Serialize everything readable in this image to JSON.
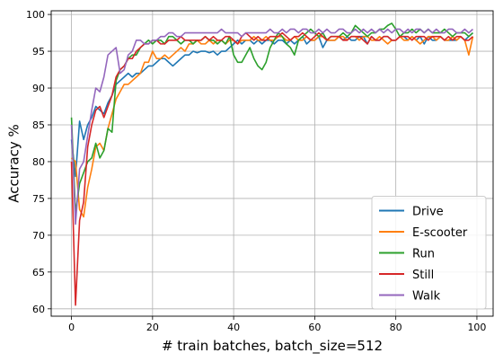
{
  "chart_data": {
    "type": "line",
    "title": "",
    "xlabel": "# train batches, batch_size=512",
    "ylabel": "Accuracy %",
    "xlim": [
      -5,
      104
    ],
    "ylim": [
      59,
      100.5
    ],
    "xticks": [
      0,
      20,
      40,
      60,
      80,
      100
    ],
    "yticks": [
      60,
      65,
      70,
      75,
      80,
      85,
      90,
      95,
      100
    ],
    "grid": true,
    "legend_position": "bottom-right",
    "x": [
      0,
      1,
      2,
      3,
      4,
      5,
      6,
      7,
      8,
      9,
      10,
      11,
      12,
      13,
      14,
      15,
      16,
      17,
      18,
      19,
      20,
      21,
      22,
      23,
      24,
      25,
      26,
      27,
      28,
      29,
      30,
      31,
      32,
      33,
      34,
      35,
      36,
      37,
      38,
      39,
      40,
      41,
      42,
      43,
      44,
      45,
      46,
      47,
      48,
      49,
      50,
      51,
      52,
      53,
      54,
      55,
      56,
      57,
      58,
      59,
      60,
      61,
      62,
      63,
      64,
      65,
      66,
      67,
      68,
      69,
      70,
      71,
      72,
      73,
      74,
      75,
      76,
      77,
      78,
      79,
      80,
      81,
      82,
      83,
      84,
      85,
      86,
      87,
      88,
      89,
      90,
      91,
      92,
      93,
      94,
      95,
      96,
      97,
      98,
      99
    ],
    "series": [
      {
        "name": "Drive",
        "color": "#1f77b4",
        "values": [
          83.0,
          78.0,
          85.5,
          83.0,
          85.0,
          86.0,
          87.5,
          87.0,
          86.5,
          88.0,
          89.0,
          90.5,
          91.0,
          91.5,
          92.0,
          91.5,
          92.0,
          92.0,
          92.5,
          93.0,
          93.0,
          93.5,
          94.0,
          94.0,
          93.5,
          93.0,
          93.5,
          94.0,
          94.5,
          94.5,
          95.0,
          94.8,
          95.0,
          95.0,
          94.8,
          95.0,
          94.5,
          95.0,
          95.0,
          95.5,
          96.0,
          96.5,
          96.0,
          96.5,
          96.5,
          96.0,
          96.5,
          96.0,
          96.5,
          96.5,
          96.0,
          96.5,
          96.5,
          96.0,
          96.5,
          96.0,
          96.5,
          97.0,
          96.0,
          96.5,
          96.5,
          97.0,
          95.5,
          96.5,
          96.5,
          96.5,
          97.0,
          96.5,
          97.0,
          96.5,
          96.5,
          97.0,
          97.0,
          96.0,
          97.0,
          96.5,
          96.5,
          97.0,
          97.0,
          96.5,
          96.5,
          97.0,
          97.0,
          96.5,
          97.0,
          96.5,
          97.0,
          96.0,
          97.0,
          96.5,
          96.5,
          97.0,
          96.5,
          96.5,
          96.5,
          96.5,
          97.0,
          96.5,
          97.0,
          97.5
        ]
      },
      {
        "name": "E-scooter",
        "color": "#ff7f0e",
        "values": [
          80.5,
          80.0,
          73.5,
          72.5,
          76.5,
          79.0,
          82.0,
          82.5,
          81.5,
          84.5,
          86.5,
          88.5,
          89.5,
          90.5,
          90.5,
          91.0,
          91.5,
          92.0,
          93.5,
          93.5,
          95.0,
          94.0,
          94.0,
          94.5,
          94.0,
          94.5,
          95.0,
          95.5,
          95.0,
          96.0,
          96.0,
          96.5,
          96.0,
          96.0,
          96.5,
          96.0,
          96.5,
          96.5,
          96.0,
          96.5,
          96.5,
          96.0,
          96.5,
          96.5,
          96.5,
          97.0,
          96.5,
          96.5,
          97.0,
          96.5,
          96.5,
          97.0,
          97.0,
          96.5,
          96.5,
          97.0,
          96.5,
          96.5,
          97.0,
          96.5,
          96.5,
          97.0,
          97.0,
          96.5,
          96.5,
          96.5,
          97.0,
          97.0,
          96.5,
          97.0,
          97.0,
          96.5,
          97.0,
          97.0,
          96.5,
          96.5,
          97.0,
          96.5,
          96.0,
          96.5,
          96.5,
          97.0,
          96.5,
          96.5,
          97.0,
          96.5,
          96.0,
          96.5,
          97.0,
          97.0,
          96.5,
          97.0,
          96.5,
          96.5,
          97.0,
          96.5,
          97.0,
          96.5,
          94.5,
          97.0
        ]
      },
      {
        "name": "Run",
        "color": "#2ca02c",
        "values": [
          86.0,
          73.0,
          77.0,
          78.5,
          80.0,
          80.5,
          82.5,
          80.5,
          81.5,
          84.5,
          84.0,
          91.0,
          92.5,
          93.0,
          94.0,
          94.5,
          94.5,
          95.5,
          96.0,
          96.5,
          96.0,
          96.5,
          96.5,
          96.0,
          97.0,
          97.0,
          96.5,
          96.0,
          96.5,
          96.5,
          96.0,
          96.5,
          96.5,
          97.0,
          96.5,
          96.5,
          96.0,
          96.5,
          96.0,
          97.0,
          94.5,
          93.5,
          93.5,
          94.5,
          95.5,
          94.0,
          93.0,
          92.5,
          93.5,
          95.5,
          96.5,
          97.5,
          97.0,
          96.0,
          95.5,
          94.5,
          96.5,
          97.0,
          97.5,
          98.0,
          97.5,
          97.0,
          97.5,
          96.5,
          97.0,
          97.0,
          97.0,
          97.5,
          97.0,
          97.5,
          98.5,
          98.0,
          97.5,
          97.0,
          97.5,
          97.5,
          98.0,
          98.0,
          98.5,
          98.8,
          98.0,
          97.0,
          97.5,
          97.5,
          98.0,
          97.5,
          98.0,
          97.5,
          98.0,
          97.5,
          97.5,
          97.5,
          98.0,
          97.5,
          97.0,
          97.5,
          97.5,
          97.5,
          97.0,
          97.5
        ]
      },
      {
        "name": "Still",
        "color": "#d62728",
        "values": [
          80.0,
          60.5,
          72.0,
          74.5,
          82.0,
          85.0,
          87.0,
          87.5,
          86.0,
          87.5,
          89.0,
          91.5,
          92.5,
          93.0,
          94.0,
          94.0,
          95.0,
          95.5,
          96.0,
          96.0,
          96.5,
          96.5,
          96.0,
          96.0,
          96.5,
          96.5,
          96.5,
          97.0,
          96.5,
          96.5,
          96.5,
          96.5,
          96.5,
          97.0,
          96.5,
          97.0,
          96.5,
          96.5,
          97.0,
          97.0,
          96.5,
          96.0,
          97.0,
          97.5,
          97.0,
          96.5,
          97.0,
          96.5,
          96.5,
          97.0,
          97.0,
          97.0,
          97.5,
          97.0,
          96.5,
          97.0,
          97.0,
          97.5,
          97.0,
          96.5,
          97.0,
          97.5,
          97.0,
          96.5,
          97.0,
          97.0,
          97.0,
          96.5,
          96.5,
          97.0,
          97.0,
          97.0,
          96.5,
          96.0,
          97.0,
          96.5,
          96.5,
          97.0,
          97.0,
          96.5,
          96.5,
          97.0,
          97.0,
          97.0,
          96.5,
          97.0,
          97.0,
          97.0,
          96.5,
          97.0,
          97.0,
          97.0,
          96.5,
          97.0,
          96.5,
          97.0,
          97.0,
          96.5,
          96.5,
          97.0
        ]
      },
      {
        "name": "Walk",
        "color": "#9467bd",
        "values": [
          85.0,
          71.5,
          79.0,
          80.0,
          83.5,
          87.0,
          90.0,
          89.5,
          91.5,
          94.5,
          95.0,
          95.5,
          92.0,
          92.5,
          94.5,
          95.0,
          96.5,
          96.5,
          96.0,
          96.0,
          96.5,
          96.5,
          97.0,
          97.0,
          97.5,
          97.5,
          97.0,
          97.0,
          97.5,
          97.5,
          97.5,
          97.5,
          97.5,
          97.5,
          97.5,
          97.5,
          97.5,
          98.0,
          97.5,
          97.5,
          97.5,
          97.5,
          97.0,
          97.5,
          97.5,
          97.5,
          97.5,
          97.5,
          97.5,
          98.0,
          97.5,
          97.5,
          98.0,
          97.5,
          98.0,
          98.0,
          97.5,
          98.0,
          98.0,
          97.5,
          97.5,
          98.0,
          97.5,
          98.0,
          97.5,
          97.5,
          98.0,
          98.0,
          97.5,
          97.5,
          98.0,
          97.5,
          98.0,
          97.5,
          98.0,
          97.5,
          98.0,
          97.5,
          98.0,
          97.5,
          98.0,
          98.0,
          97.5,
          98.0,
          97.5,
          98.0,
          98.0,
          97.5,
          98.0,
          97.5,
          98.0,
          97.5,
          97.5,
          98.0,
          98.0,
          97.5,
          97.5,
          98.0,
          97.5,
          98.0
        ]
      }
    ]
  }
}
